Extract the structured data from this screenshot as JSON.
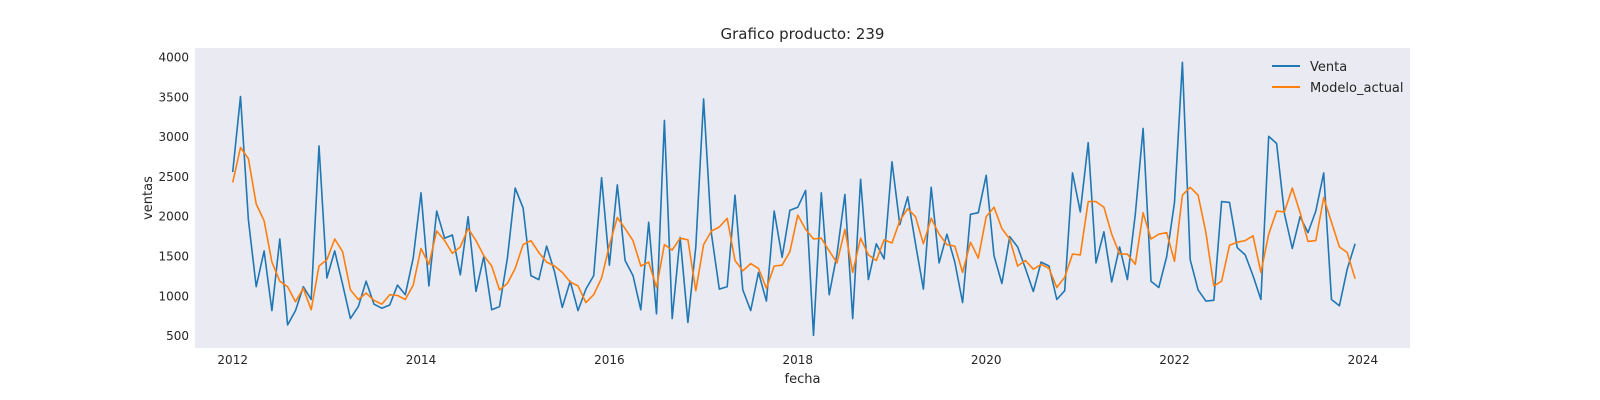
{
  "chart_data": {
    "type": "line",
    "title": "Grafico producto: 239",
    "xlabel": "fecha",
    "ylabel": "ventas",
    "xlim": [
      2011.6,
      2024.5
    ],
    "ylim": [
      350,
      4120
    ],
    "x_ticks": [
      {
        "value": 2012,
        "label": "2012"
      },
      {
        "value": 2014,
        "label": "2014"
      },
      {
        "value": 2016,
        "label": "2016"
      },
      {
        "value": 2018,
        "label": "2018"
      },
      {
        "value": 2020,
        "label": "2020"
      },
      {
        "value": 2022,
        "label": "2022"
      },
      {
        "value": 2024,
        "label": "2024"
      }
    ],
    "y_ticks": [
      {
        "value": 500,
        "label": "500"
      },
      {
        "value": 1000,
        "label": "1000"
      },
      {
        "value": 1500,
        "label": "1500"
      },
      {
        "value": 2000,
        "label": "2000"
      },
      {
        "value": 2500,
        "label": "2500"
      },
      {
        "value": 3000,
        "label": "3000"
      },
      {
        "value": 3500,
        "label": "3500"
      },
      {
        "value": 4000,
        "label": "4000"
      }
    ],
    "grid": false,
    "legend_position": "top-right",
    "x_start": 2012.0,
    "x_step": 0.0833333,
    "series": [
      {
        "name": "Venta",
        "color": "#1f77b4",
        "values": [
          2560,
          3510,
          1960,
          1120,
          1570,
          820,
          1720,
          640,
          820,
          1120,
          960,
          2890,
          1230,
          1570,
          1150,
          720,
          870,
          1190,
          900,
          850,
          890,
          1140,
          1020,
          1480,
          2300,
          1130,
          2070,
          1730,
          1770,
          1270,
          2000,
          1060,
          1500,
          830,
          870,
          1480,
          2360,
          2110,
          1260,
          1210,
          1630,
          1310,
          860,
          1190,
          820,
          1090,
          1260,
          2490,
          1390,
          2400,
          1450,
          1260,
          830,
          1930,
          780,
          3210,
          720,
          1740,
          670,
          1620,
          3480,
          1780,
          1090,
          1120,
          2270,
          1080,
          820,
          1300,
          940,
          2070,
          1490,
          2080,
          2120,
          2330,
          510,
          2300,
          1020,
          1530,
          2280,
          720,
          2470,
          1210,
          1660,
          1470,
          2690,
          1900,
          2250,
          1660,
          1090,
          2370,
          1420,
          1780,
          1430,
          920,
          2030,
          2050,
          2520,
          1510,
          1160,
          1750,
          1620,
          1350,
          1060,
          1430,
          1380,
          960,
          1070,
          2550,
          2060,
          2930,
          1420,
          1810,
          1180,
          1620,
          1210,
          2030,
          3110,
          1190,
          1110,
          1500,
          2180,
          3940,
          1460,
          1080,
          940,
          950,
          2190,
          2180,
          1610,
          1520,
          1260,
          960,
          3010,
          2920,
          2040,
          1600,
          2000,
          1800,
          2070,
          2550,
          960,
          880,
          1340,
          1660
        ]
      },
      {
        "name": "Modelo_actual",
        "color": "#ff7f0e",
        "values": [
          2430,
          2870,
          2730,
          2160,
          1950,
          1430,
          1190,
          1120,
          930,
          1100,
          830,
          1380,
          1460,
          1720,
          1560,
          1080,
          960,
          1040,
          950,
          900,
          1020,
          1010,
          960,
          1140,
          1600,
          1400,
          1820,
          1700,
          1540,
          1620,
          1850,
          1700,
          1510,
          1380,
          1080,
          1160,
          1350,
          1650,
          1700,
          1550,
          1430,
          1380,
          1300,
          1180,
          1130,
          920,
          1020,
          1230,
          1640,
          1990,
          1850,
          1700,
          1380,
          1430,
          1110,
          1650,
          1580,
          1730,
          1710,
          1070,
          1650,
          1820,
          1870,
          1980,
          1450,
          1320,
          1410,
          1350,
          1100,
          1380,
          1390,
          1560,
          2020,
          1840,
          1720,
          1730,
          1570,
          1420,
          1840,
          1300,
          1730,
          1520,
          1450,
          1710,
          1670,
          1950,
          2100,
          2000,
          1660,
          1980,
          1780,
          1650,
          1630,
          1300,
          1680,
          1480,
          2000,
          2120,
          1850,
          1720,
          1380,
          1450,
          1340,
          1400,
          1350,
          1110,
          1240,
          1530,
          1520,
          2190,
          2190,
          2120,
          1780,
          1530,
          1530,
          1400,
          2050,
          1720,
          1780,
          1800,
          1440,
          2270,
          2370,
          2270,
          1800,
          1130,
          1190,
          1640,
          1680,
          1700,
          1760,
          1300,
          1780,
          2070,
          2060,
          2360,
          2050,
          1690,
          1700,
          2240,
          1930,
          1620,
          1550,
          1220
        ]
      }
    ]
  }
}
